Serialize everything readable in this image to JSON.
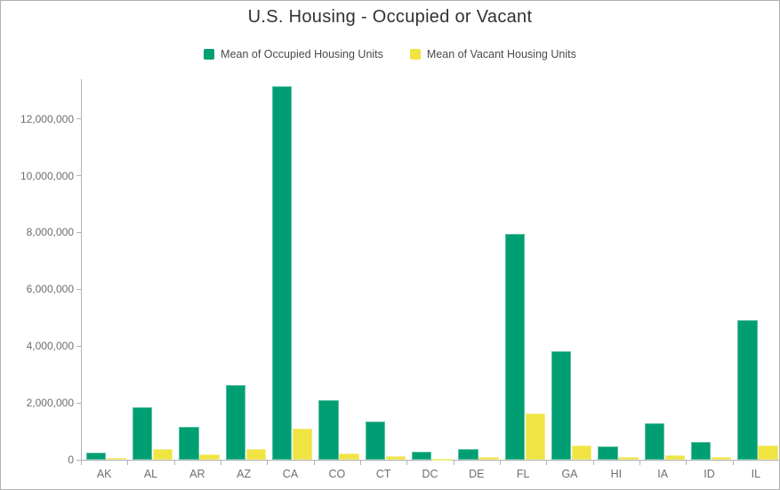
{
  "title": "U.S. Housing - Occupied or Vacant",
  "legend": [
    {
      "label": "Mean of Occupied Housing Units",
      "color": "#009e73"
    },
    {
      "label": "Mean of Vacant Housing Units",
      "color": "#f0e442"
    }
  ],
  "style": {
    "frame_border_color": "#b2b2b2",
    "axis_color": "#b4b4b4",
    "tick_label_color": "#6e6e6e",
    "title_color": "#323232",
    "legend_text_color": "#4a4a4a",
    "background": "#ffffff"
  },
  "chart_data": {
    "type": "bar",
    "title": "U.S. Housing - Occupied or Vacant",
    "xlabel": "",
    "ylabel": "",
    "grid": false,
    "legend_position": "top",
    "categories": [
      "AK",
      "AL",
      "AR",
      "AZ",
      "CA",
      "CO",
      "CT",
      "DC",
      "DE",
      "FL",
      "GA",
      "HI",
      "IA",
      "ID",
      "IL"
    ],
    "series": [
      {
        "name": "Mean of Occupied Housing Units",
        "color": "#009e73",
        "values": [
          260000,
          1850000,
          1150000,
          2620000,
          13150000,
          2110000,
          1360000,
          280000,
          380000,
          7950000,
          3820000,
          480000,
          1270000,
          630000,
          4900000
        ]
      },
      {
        "name": "Mean of Vacant Housing Units",
        "color": "#f0e442",
        "values": [
          60000,
          380000,
          190000,
          380000,
          1100000,
          230000,
          130000,
          40000,
          90000,
          1630000,
          490000,
          100000,
          160000,
          100000,
          490000
        ]
      }
    ],
    "ylim": [
      0,
      13400000
    ],
    "yticks": [
      0,
      2000000,
      4000000,
      6000000,
      8000000,
      10000000,
      12000000
    ],
    "ytick_labels": [
      "0",
      "2,000,000",
      "4,000,000",
      "6,000,000",
      "8,000,000",
      "10,000,000",
      "12,000,000"
    ]
  }
}
